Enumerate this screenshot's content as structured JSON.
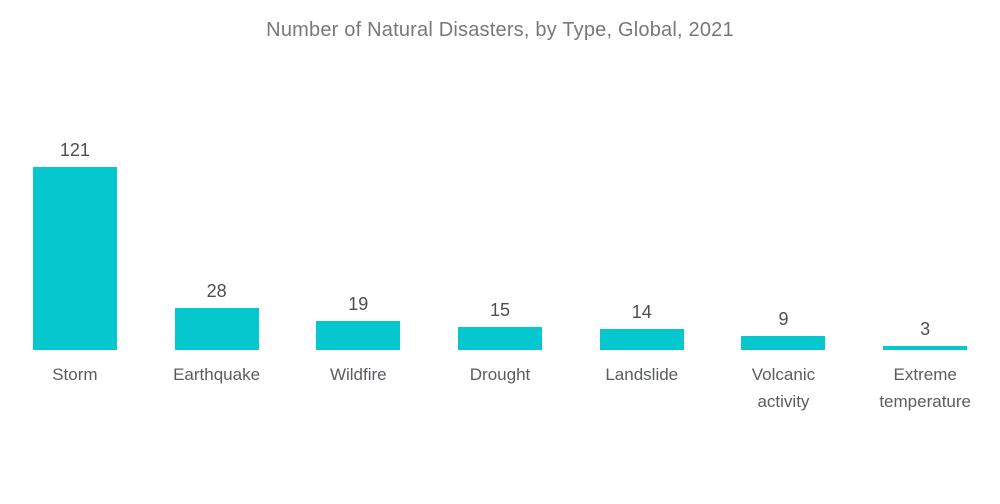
{
  "title": "Number of Natural Disasters, by Type, Global, 2021",
  "colors": {
    "bar": "#04c8ce",
    "title_text": "#77787b",
    "value_text": "#4b4f54",
    "label_text": "#595c61",
    "background": "#ffffff"
  },
  "chart_data": {
    "type": "bar",
    "title": "Number of Natural Disasters, by Type, Global, 2021",
    "categories": [
      "Storm",
      "Earthquake",
      "Wildfire",
      "Drought",
      "Landslide",
      "Volcanic activity",
      "Extreme temperature"
    ],
    "values": [
      121,
      28,
      19,
      15,
      14,
      9,
      3
    ],
    "xlabel": "",
    "ylabel": "",
    "ylim": [
      0,
      121
    ],
    "grid": false,
    "legend": false,
    "data_labels": true,
    "bar_color": "#04c8ce"
  }
}
